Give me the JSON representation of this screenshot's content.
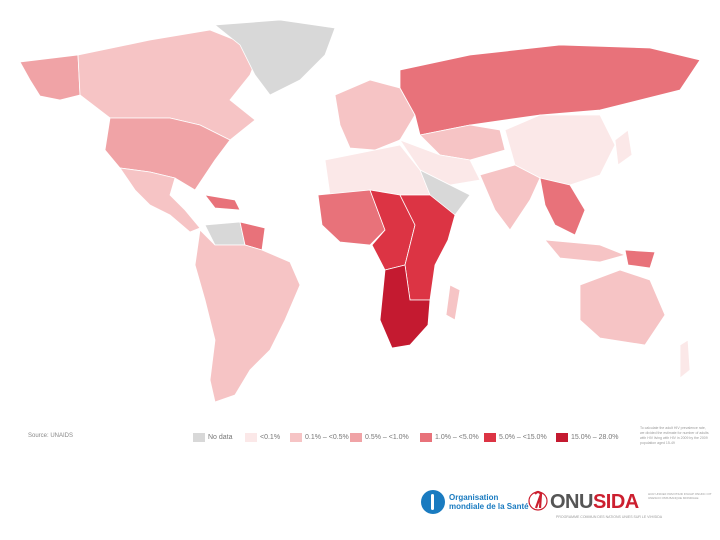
{
  "colors": {
    "no_data": "#d8d8d8",
    "lt_0_1": "#fbe8e8",
    "p0_1_0_5": "#f6c4c5",
    "p0_5_1_0": "#f0a3a6",
    "p1_0_5_0": "#e8727a",
    "p5_0_15_0": "#dc3444",
    "p15_0_28_0": "#c41a30"
  },
  "legend": {
    "source": "Source: UNAIDS",
    "items": [
      {
        "label": "No data",
        "color": "#d8d8d8"
      },
      {
        "label": "<0.1%",
        "color": "#fbe8e8"
      },
      {
        "label": "0.1% – <0.5%",
        "color": "#f6c4c5"
      },
      {
        "label": "0.5% – <1.0%",
        "color": "#f0a3a6"
      },
      {
        "label": "1.0% – <5.0%",
        "color": "#e8727a"
      },
      {
        "label": "5.0% – <15.0%",
        "color": "#dc3444"
      },
      {
        "label": "15.0% – 28.0%",
        "color": "#c41a30"
      }
    ],
    "note": "To calculate the adult HIV prevalence rate, we divided the estimate for number of adults with HIV living with HIV in 2009 by the 2009 population aged 15-49"
  },
  "logos": {
    "who_line1": "Organisation",
    "who_line2": "mondiale de la Santé",
    "onu_prefix": "ONU",
    "onu_suffix": "SIDA",
    "onu_tagline": "PROGRAMME COMMUN DES NATIONS UNIES SUR LE VIH/SIDA",
    "onu_tags": "HCR UNICEF PAM PNUD FNUAP ONUDC OIT UNESCO OMS BANQUE MONDIALE"
  },
  "map": {
    "regions": [
      {
        "name": "region-canada",
        "level": "p0_1_0_5"
      },
      {
        "name": "region-alaska",
        "level": "p0_5_1_0"
      },
      {
        "name": "region-greenland",
        "level": "no_data"
      },
      {
        "name": "region-usa",
        "level": "p0_5_1_0"
      },
      {
        "name": "region-mexico-central-america",
        "level": "p0_1_0_5"
      },
      {
        "name": "region-caribbean",
        "level": "p1_0_5_0"
      },
      {
        "name": "region-south-america",
        "level": "p0_1_0_5"
      },
      {
        "name": "region-guyanas",
        "level": "p1_0_5_0"
      },
      {
        "name": "region-venezuela",
        "level": "no_data"
      },
      {
        "name": "region-europe-west",
        "level": "p0_1_0_5"
      },
      {
        "name": "region-russia",
        "level": "p1_0_5_0"
      },
      {
        "name": "region-central-asia",
        "level": "p0_1_0_5"
      },
      {
        "name": "region-china",
        "level": "lt_0_1"
      },
      {
        "name": "region-india",
        "level": "p0_1_0_5"
      },
      {
        "name": "region-middle-east",
        "level": "lt_0_1"
      },
      {
        "name": "region-arabia",
        "level": "no_data"
      },
      {
        "name": "region-north-africa",
        "level": "lt_0_1"
      },
      {
        "name": "region-west-africa",
        "level": "p1_0_5_0"
      },
      {
        "name": "region-central-africa",
        "level": "p5_0_15_0"
      },
      {
        "name": "region-east-africa",
        "level": "p5_0_15_0"
      },
      {
        "name": "region-southern-africa",
        "level": "p15_0_28_0"
      },
      {
        "name": "region-madagascar",
        "level": "p0_1_0_5"
      },
      {
        "name": "region-southeast-asia",
        "level": "p1_0_5_0"
      },
      {
        "name": "region-indonesia",
        "level": "p0_1_0_5"
      },
      {
        "name": "region-papua",
        "level": "p1_0_5_0"
      },
      {
        "name": "region-australia",
        "level": "p0_1_0_5"
      },
      {
        "name": "region-new-zealand",
        "level": "lt_0_1"
      },
      {
        "name": "region-japan",
        "level": "lt_0_1"
      }
    ]
  }
}
